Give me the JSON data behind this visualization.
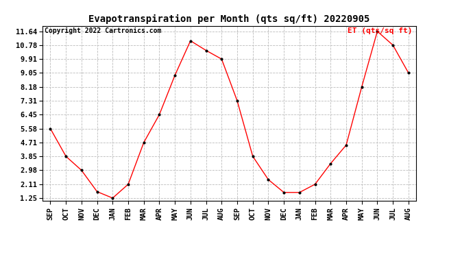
{
  "title": "Evapotranspiration per Month (qts sq/ft) 20220905",
  "copyright_text": "Copyright 2022 Cartronics.com",
  "legend_label": "ET (qts/sq ft)",
  "x_labels": [
    "SEP",
    "OCT",
    "NOV",
    "DEC",
    "JAN",
    "FEB",
    "MAR",
    "APR",
    "MAY",
    "JUN",
    "JUL",
    "AUG",
    "SEP",
    "OCT",
    "NOV",
    "DEC",
    "JAN",
    "FEB",
    "MAR",
    "APR",
    "MAY",
    "JUN",
    "JUL",
    "AUG"
  ],
  "y_values": [
    5.58,
    3.85,
    2.98,
    1.65,
    1.25,
    2.11,
    4.71,
    6.45,
    8.9,
    11.05,
    10.45,
    9.91,
    7.31,
    3.85,
    2.4,
    1.6,
    1.6,
    2.11,
    3.4,
    4.55,
    8.18,
    11.64,
    10.78,
    9.05
  ],
  "y_ticks": [
    1.25,
    2.11,
    2.98,
    3.85,
    4.71,
    5.58,
    6.45,
    7.31,
    8.18,
    9.05,
    9.91,
    10.78,
    11.64
  ],
  "y_min": 1.25,
  "y_max": 11.64,
  "line_color": "red",
  "marker_color": "black",
  "background_color": "white",
  "grid_color": "#bbbbbb",
  "title_fontsize": 10,
  "copyright_fontsize": 7,
  "legend_fontsize": 8,
  "tick_fontsize": 7.5,
  "fig_width": 6.9,
  "fig_height": 3.75,
  "dpi": 100
}
